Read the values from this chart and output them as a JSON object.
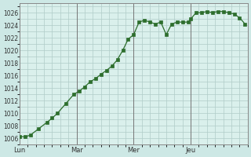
{
  "background_color": "#cde8e5",
  "plot_bg_color": "#daf0ec",
  "grid_color": "#b0ccc8",
  "line_color": "#2d6e2d",
  "marker_color": "#2d6e2d",
  "ylim": [
    1005,
    1027.5
  ],
  "yticks": [
    1006,
    1008,
    1010,
    1012,
    1014,
    1016,
    1018,
    1020,
    1022,
    1024,
    1026
  ],
  "day_labels": [
    "Lun",
    "Mar",
    "Mer",
    "Jeu"
  ],
  "day_positions": [
    0,
    21,
    42,
    63
  ],
  "xmax": 84,
  "x_values": [
    0,
    2,
    4,
    7,
    10,
    12,
    14,
    17,
    20,
    22,
    24,
    26,
    28,
    30,
    32,
    34,
    36,
    38,
    40,
    42,
    44,
    46,
    48,
    50,
    52,
    54,
    56,
    58,
    60,
    62,
    63,
    65,
    67,
    69,
    71,
    73,
    75,
    77,
    79,
    81,
    83
  ],
  "y_values": [
    1006.3,
    1006.2,
    1006.5,
    1007.5,
    1008.5,
    1009.2,
    1010.0,
    1011.5,
    1013.0,
    1013.5,
    1014.2,
    1015.0,
    1015.5,
    1016.2,
    1016.8,
    1017.5,
    1018.5,
    1020.0,
    1021.8,
    1022.5,
    1024.5,
    1024.8,
    1024.5,
    1024.2,
    1024.5,
    1022.5,
    1024.2,
    1024.5,
    1024.5,
    1024.5,
    1025.0,
    1026.0,
    1026.0,
    1026.2,
    1026.0,
    1026.2,
    1026.2,
    1026.0,
    1025.8,
    1025.2,
    1024.2
  ]
}
